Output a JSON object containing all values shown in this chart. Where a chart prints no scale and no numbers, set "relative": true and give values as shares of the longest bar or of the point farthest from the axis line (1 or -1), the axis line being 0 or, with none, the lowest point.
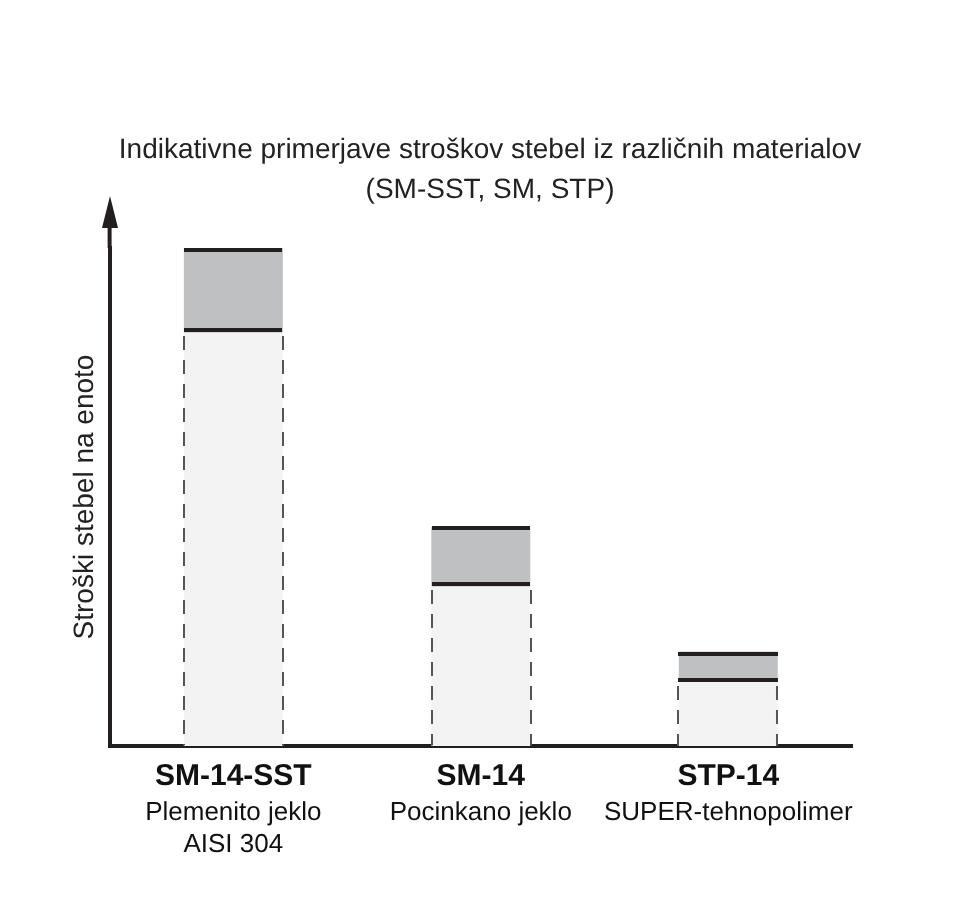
{
  "chart_data": {
    "type": "bar",
    "title": "Indikativne primerjave stroškov stebel iz različnih materialov\n(SM-SST, SM, STP)",
    "ylabel": "Stroški stebel na enoto",
    "categories": [
      "SM-14-SST\nPlemenito jeklo\nAISI 304",
      "SM-14\nPocinkano jeklo",
      "STP-14\nSUPER-tehnopolimer"
    ],
    "relative": true,
    "stacked": true,
    "series": [
      {
        "color": "#f3f3f3",
        "values": [
          0.83,
          0.32,
          0.13
        ]
      },
      {
        "color": "#bfc0c2",
        "values": [
          0.17,
          0.12,
          0.06
        ]
      }
    ],
    "grid": false,
    "legend": false
  }
}
